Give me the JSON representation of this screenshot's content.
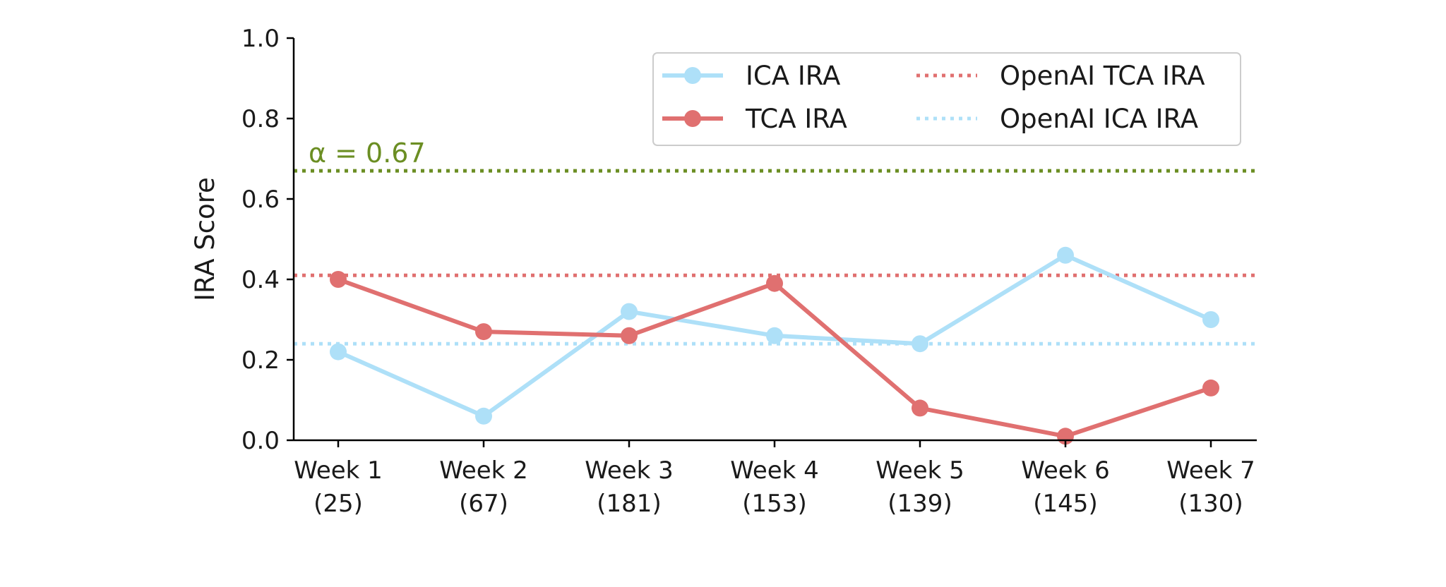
{
  "chart_data": {
    "type": "line",
    "title": "",
    "xlabel": "",
    "ylabel": "IRA Score",
    "categories": [
      [
        "Week 1",
        "(25)"
      ],
      [
        "Week 2",
        "(67)"
      ],
      [
        "Week 3",
        "(181)"
      ],
      [
        "Week 4",
        "(153)"
      ],
      [
        "Week 5",
        "(139)"
      ],
      [
        "Week 6",
        "(145)"
      ],
      [
        "Week 7",
        "(130)"
      ]
    ],
    "ylim": [
      0,
      1.0
    ],
    "yticks": [
      "0.0",
      "0.2",
      "0.4",
      "0.6",
      "0.8",
      "1.0"
    ],
    "grid": false,
    "legend_position": "top-right",
    "series": [
      {
        "name": "ICA IRA",
        "color": "#aee0f8",
        "marker": "circle",
        "values": [
          0.22,
          0.06,
          0.32,
          0.26,
          0.24,
          0.46,
          0.3
        ]
      },
      {
        "name": "TCA IRA",
        "color": "#e07070",
        "marker": "circle",
        "values": [
          0.4,
          0.27,
          0.26,
          0.39,
          0.08,
          0.01,
          0.13
        ]
      }
    ],
    "reference_lines": [
      {
        "name": "OpenAI TCA IRA",
        "value": 0.41,
        "color": "#e07070",
        "style": "dotted"
      },
      {
        "name": "OpenAI ICA IRA",
        "value": 0.24,
        "color": "#aee0f8",
        "style": "dotted"
      },
      {
        "name": "",
        "value": 0.67,
        "color": "#6b8e23",
        "style": "dotted",
        "label": "α = 0.67"
      }
    ]
  }
}
